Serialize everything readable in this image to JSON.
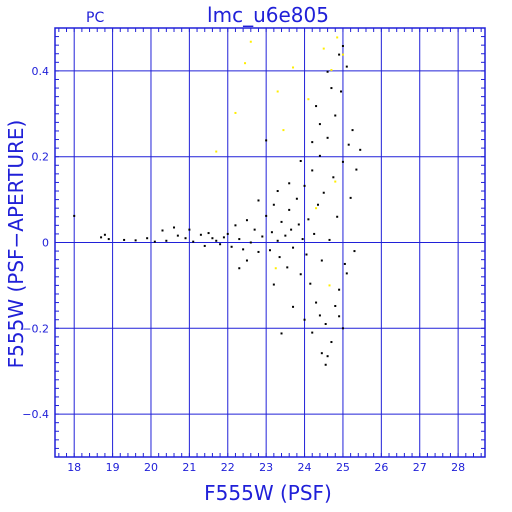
{
  "chart_data": {
    "type": "scatter",
    "title": "lmc_u6e805",
    "tag": "PC",
    "xlabel": "F555W (PSF)",
    "ylabel": "F555W (PSF−APERTURE)",
    "xlim": [
      17.5,
      28.7
    ],
    "ylim": [
      -0.5,
      0.5
    ],
    "x_ticks": [
      18,
      19,
      20,
      21,
      22,
      23,
      24,
      25,
      26,
      27,
      28
    ],
    "x_tick_labels": [
      "18",
      "19",
      "20",
      "21",
      "22",
      "23",
      "24",
      "25",
      "26",
      "27",
      "28"
    ],
    "y_ticks": [
      -0.4,
      -0.2,
      0,
      0.2,
      0.4
    ],
    "y_tick_labels": [
      "−0.4",
      "−0.2",
      "0",
      "0.2",
      "0.4"
    ],
    "x_minor_step": 0.2,
    "y_minor_step": 0.02,
    "grid": true,
    "colors": {
      "axis": "#2020d8",
      "grid": "#2020d8",
      "main_points": "#000000",
      "flagged_points": "#ffee00"
    },
    "series": [
      {
        "color": "#000000",
        "points": [
          [
            18.0,
            0.062
          ],
          [
            18.7,
            0.012
          ],
          [
            18.8,
            0.018
          ],
          [
            18.9,
            0.008
          ],
          [
            19.3,
            0.006
          ],
          [
            19.6,
            0.005
          ],
          [
            19.9,
            0.01
          ],
          [
            20.1,
            0.002
          ],
          [
            20.3,
            0.028
          ],
          [
            20.4,
            0.004
          ],
          [
            20.6,
            0.035
          ],
          [
            20.7,
            0.016
          ],
          [
            20.9,
            0.01
          ],
          [
            21.0,
            0.03
          ],
          [
            21.1,
            0.002
          ],
          [
            21.3,
            0.018
          ],
          [
            21.4,
            -0.008
          ],
          [
            21.5,
            0.022
          ],
          [
            21.6,
            0.01
          ],
          [
            21.7,
            0.004
          ],
          [
            21.8,
            -0.004
          ],
          [
            21.9,
            0.012
          ],
          [
            22.0,
            0.02
          ],
          [
            22.1,
            -0.01
          ],
          [
            22.2,
            0.04
          ],
          [
            22.3,
            0.008
          ],
          [
            22.4,
            -0.016
          ],
          [
            22.5,
            0.052
          ],
          [
            22.6,
            0.0
          ],
          [
            22.7,
            0.03
          ],
          [
            22.8,
            -0.022
          ],
          [
            22.9,
            0.014
          ],
          [
            23.0,
            0.062
          ],
          [
            23.1,
            -0.018
          ],
          [
            23.15,
            0.024
          ],
          [
            23.2,
            0.088
          ],
          [
            23.3,
            0.004
          ],
          [
            23.35,
            -0.034
          ],
          [
            23.4,
            0.048
          ],
          [
            23.5,
            0.016
          ],
          [
            23.55,
            -0.058
          ],
          [
            23.6,
            0.076
          ],
          [
            23.65,
            0.03
          ],
          [
            23.7,
            -0.012
          ],
          [
            23.8,
            0.102
          ],
          [
            23.85,
            0.042
          ],
          [
            23.9,
            -0.074
          ],
          [
            23.95,
            0.008
          ],
          [
            24.0,
            0.132
          ],
          [
            24.05,
            -0.028
          ],
          [
            24.1,
            0.054
          ],
          [
            24.15,
            -0.096
          ],
          [
            24.2,
            0.168
          ],
          [
            24.25,
            0.02
          ],
          [
            24.3,
            -0.14
          ],
          [
            24.35,
            0.088
          ],
          [
            24.4,
            0.202
          ],
          [
            24.45,
            -0.042
          ],
          [
            24.5,
            0.116
          ],
          [
            24.55,
            -0.19
          ],
          [
            24.6,
            0.244
          ],
          [
            24.65,
            0.006
          ],
          [
            24.7,
            -0.232
          ],
          [
            24.75,
            0.152
          ],
          [
            24.8,
            0.296
          ],
          [
            24.85,
            0.06
          ],
          [
            24.9,
            -0.11
          ],
          [
            24.95,
            0.352
          ],
          [
            25.0,
            0.188
          ],
          [
            25.05,
            -0.05
          ],
          [
            25.1,
            0.41
          ],
          [
            25.15,
            0.228
          ],
          [
            25.2,
            0.104
          ],
          [
            25.25,
            0.262
          ],
          [
            25.35,
            0.17
          ],
          [
            25.45,
            0.216
          ],
          [
            24.6,
            -0.265
          ],
          [
            24.55,
            -0.285
          ],
          [
            24.45,
            -0.258
          ],
          [
            23.4,
            -0.212
          ],
          [
            24.3,
            0.318
          ],
          [
            24.7,
            0.36
          ],
          [
            24.9,
            0.438
          ],
          [
            25.0,
            0.458
          ],
          [
            24.6,
            0.398
          ],
          [
            24.4,
            0.276
          ],
          [
            24.2,
            0.234
          ],
          [
            23.9,
            0.19
          ],
          [
            23.6,
            0.138
          ],
          [
            23.3,
            0.12
          ],
          [
            23.0,
            0.238
          ],
          [
            22.8,
            0.098
          ],
          [
            22.5,
            -0.042
          ],
          [
            22.3,
            -0.06
          ],
          [
            23.2,
            -0.098
          ],
          [
            23.7,
            -0.15
          ],
          [
            24.0,
            -0.18
          ],
          [
            24.2,
            -0.21
          ],
          [
            24.4,
            -0.17
          ],
          [
            24.8,
            -0.148
          ],
          [
            25.0,
            -0.2
          ],
          [
            24.9,
            -0.172
          ],
          [
            25.1,
            -0.072
          ],
          [
            25.3,
            -0.02
          ]
        ]
      },
      {
        "color": "#ffee00",
        "points": [
          [
            21.7,
            0.212
          ],
          [
            22.2,
            0.302
          ],
          [
            22.45,
            0.418
          ],
          [
            22.6,
            0.468
          ],
          [
            23.3,
            0.352
          ],
          [
            23.45,
            0.262
          ],
          [
            23.7,
            0.408
          ],
          [
            24.1,
            0.334
          ],
          [
            24.5,
            0.452
          ],
          [
            24.7,
            0.402
          ],
          [
            24.85,
            0.478
          ],
          [
            25.0,
            0.438
          ],
          [
            24.3,
            0.08
          ],
          [
            24.65,
            -0.1
          ],
          [
            23.25,
            -0.06
          ],
          [
            24.8,
            0.142
          ]
        ]
      }
    ]
  }
}
